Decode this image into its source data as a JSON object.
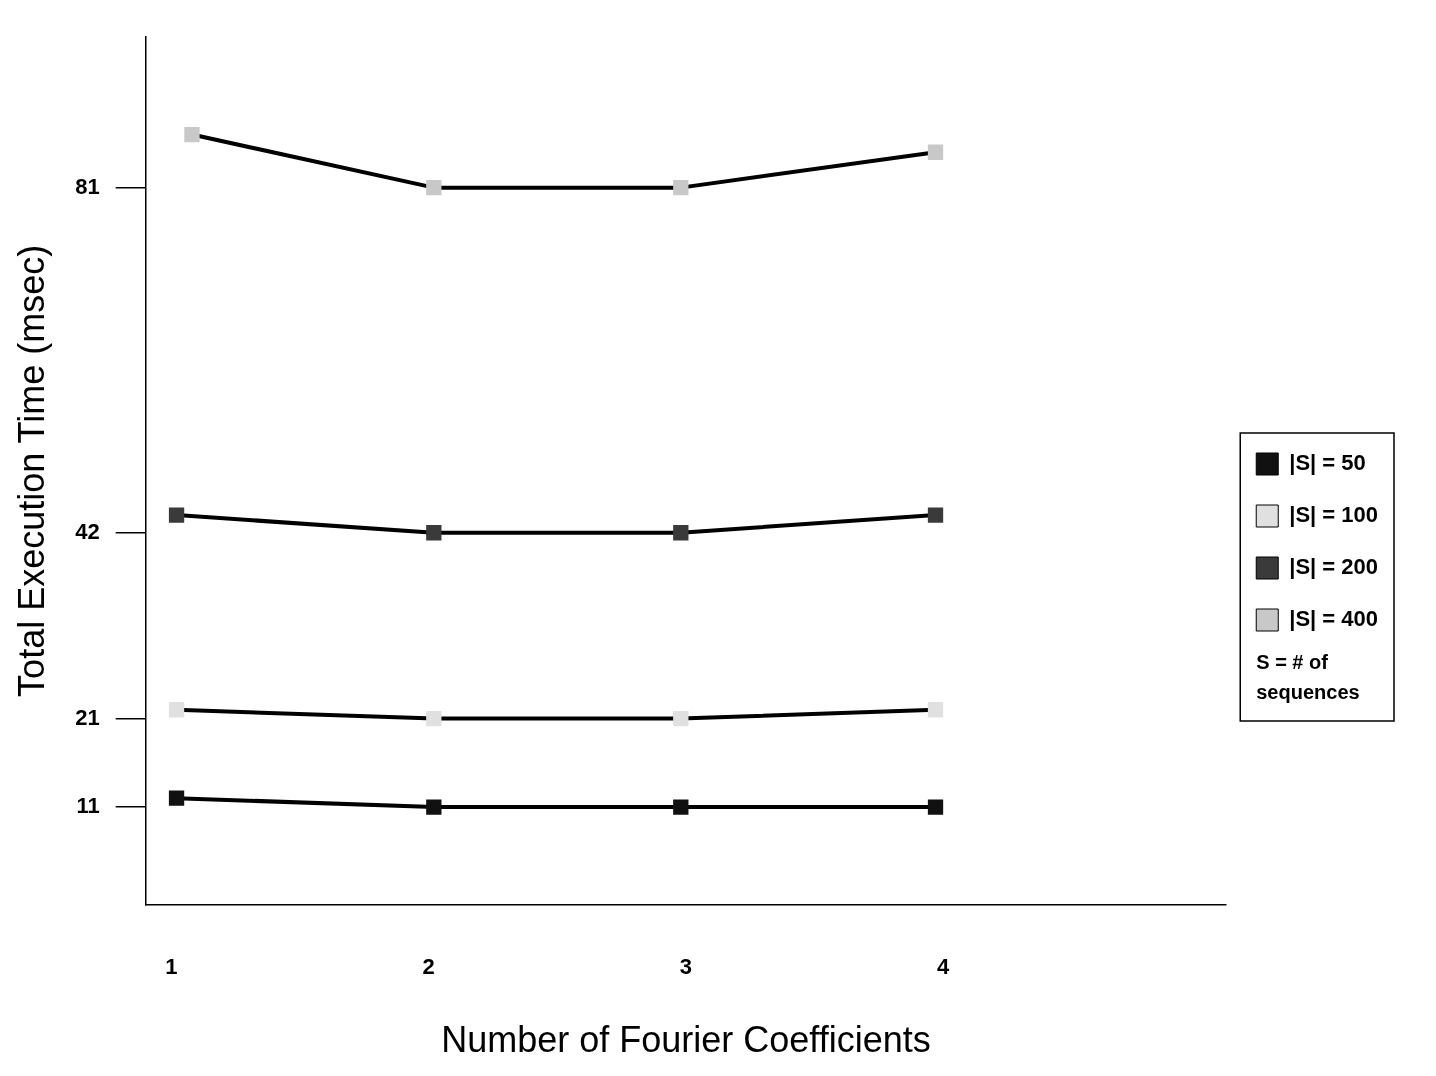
{
  "chart_data": {
    "type": "line",
    "xlabel": "Number of Fourier Coefficients",
    "ylabel": "Total Execution Time (msec)",
    "xlim": [
      0.9,
      5.1
    ],
    "xticks": [
      1,
      2,
      3,
      4
    ],
    "ylim": [
      0,
      98
    ],
    "yticks": [
      11,
      21,
      42,
      81
    ],
    "series": [
      {
        "name": "|S| = 50",
        "color": "#111111",
        "x": [
          1.02,
          2.02,
          2.98,
          3.97
        ],
        "values": [
          12,
          11,
          11,
          11
        ]
      },
      {
        "name": "|S| = 100",
        "color": "#e0e0e0",
        "x": [
          1.02,
          2.02,
          2.98,
          3.97
        ],
        "values": [
          22,
          21,
          21,
          22
        ]
      },
      {
        "name": "|S| = 200",
        "color": "#3a3a3a",
        "x": [
          1.02,
          2.02,
          2.98,
          3.97
        ],
        "values": [
          44,
          42,
          42,
          44
        ]
      },
      {
        "name": "|S| = 400",
        "color": "#c8c8c8",
        "x": [
          1.08,
          2.02,
          2.98,
          3.97
        ],
        "values": [
          87,
          81,
          81,
          85
        ]
      }
    ],
    "legend": "right",
    "marker": "square",
    "line_style": "solid",
    "grid": false,
    "annotations": [
      "S = # of sequences"
    ]
  }
}
